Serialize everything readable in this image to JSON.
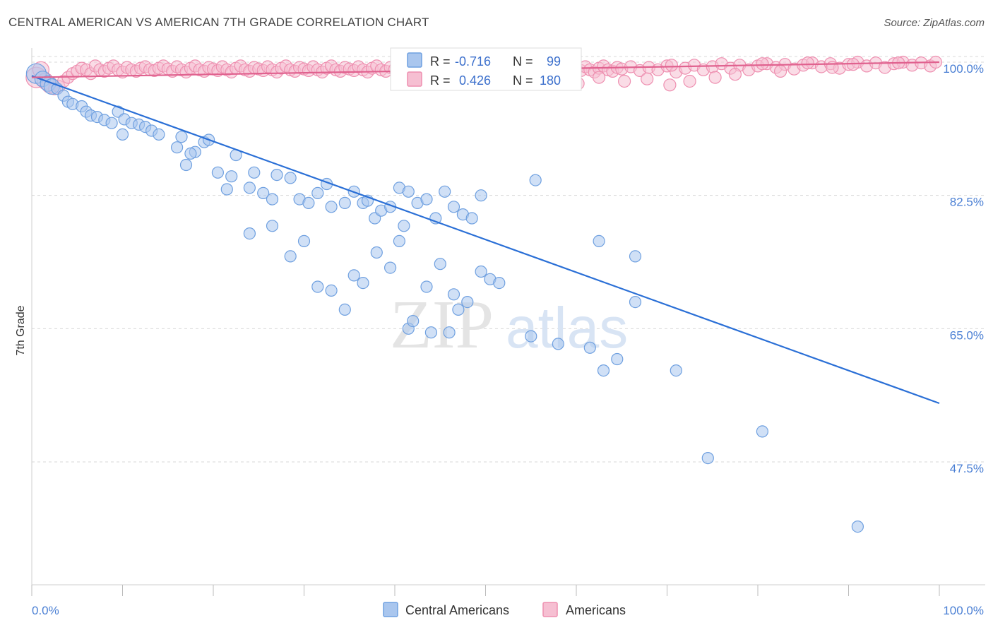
{
  "header": {
    "title": "CENTRAL AMERICAN VS AMERICAN 7TH GRADE CORRELATION CHART",
    "source": "Source: ZipAtlas.com"
  },
  "watermark": {
    "zip": "ZIP",
    "atlas": "atlas"
  },
  "colors": {
    "blue": "#6fa0e0",
    "blue_fill": "#a9c6ee",
    "blue_line": "#2a6fd6",
    "pink": "#ee8fb0",
    "pink_fill": "#f6bfd2",
    "pink_line": "#e0628f",
    "grid": "#d8d8d8",
    "axis_label": "#4a7fd4"
  },
  "legend_box": {
    "rows": [
      {
        "r_label": "R =",
        "r_value": "-0.716",
        "n_label": "N =",
        "n_value": "99"
      },
      {
        "r_label": "R =",
        "r_value": "0.426",
        "n_label": "N =",
        "n_value": "180"
      }
    ]
  },
  "bottom_legend": [
    "Central Americans",
    "Americans"
  ],
  "chart_data": {
    "type": "scatter",
    "title": "CENTRAL AMERICAN VS AMERICAN 7TH GRADE CORRELATION CHART",
    "xlabel": "",
    "ylabel": "7th Grade",
    "xlim": [
      0,
      100
    ],
    "ylim": [
      32,
      103
    ],
    "x_tick_labels": [
      "0.0%",
      "100.0%"
    ],
    "y_ticks": [
      47.5,
      65.0,
      82.5,
      100.0
    ],
    "y_tick_labels": [
      "47.5%",
      "65.0%",
      "82.5%",
      "100.0%"
    ],
    "grid": true,
    "legend_position": "top-center",
    "series": [
      {
        "name": "Central Americans",
        "r": -0.716,
        "n": 99,
        "trend": {
          "x": [
            0,
            100
          ],
          "y": [
            98.2,
            55.2
          ]
        },
        "points": [
          [
            0.5,
            98.5
          ],
          [
            1.2,
            97.8
          ],
          [
            1.8,
            97.2
          ],
          [
            2.2,
            96.8
          ],
          [
            2.8,
            96.5
          ],
          [
            3.5,
            95.6
          ],
          [
            4.0,
            94.8
          ],
          [
            4.5,
            94.5
          ],
          [
            5.5,
            94.2
          ],
          [
            6.0,
            93.5
          ],
          [
            6.5,
            93.0
          ],
          [
            7.2,
            92.8
          ],
          [
            8.0,
            92.4
          ],
          [
            8.8,
            92.0
          ],
          [
            9.5,
            93.5
          ],
          [
            10.2,
            92.5
          ],
          [
            11.0,
            92.0
          ],
          [
            11.8,
            91.8
          ],
          [
            12.5,
            91.5
          ],
          [
            13.2,
            91.0
          ],
          [
            14.0,
            90.5
          ],
          [
            10.0,
            90.5
          ],
          [
            16.5,
            90.2
          ],
          [
            16.0,
            88.8
          ],
          [
            18.0,
            88.2
          ],
          [
            17.0,
            86.5
          ],
          [
            17.5,
            88.0
          ],
          [
            19.0,
            89.5
          ],
          [
            20.5,
            85.5
          ],
          [
            22.0,
            85.0
          ],
          [
            22.5,
            87.8
          ],
          [
            24.0,
            83.5
          ],
          [
            24.5,
            85.5
          ],
          [
            19.5,
            89.8
          ],
          [
            21.5,
            83.3
          ],
          [
            25.5,
            82.8
          ],
          [
            26.5,
            82.0
          ],
          [
            27.0,
            85.2
          ],
          [
            28.5,
            84.8
          ],
          [
            29.5,
            82.0
          ],
          [
            30.5,
            81.5
          ],
          [
            31.5,
            82.8
          ],
          [
            32.5,
            84.0
          ],
          [
            33.0,
            81.0
          ],
          [
            34.5,
            81.5
          ],
          [
            35.5,
            83.0
          ],
          [
            36.5,
            81.5
          ],
          [
            37.0,
            81.8
          ],
          [
            37.8,
            79.5
          ],
          [
            38.5,
            80.5
          ],
          [
            39.5,
            81.0
          ],
          [
            40.5,
            83.5
          ],
          [
            41.5,
            83.0
          ],
          [
            42.5,
            81.5
          ],
          [
            43.5,
            82.0
          ],
          [
            44.5,
            79.5
          ],
          [
            45.5,
            83.0
          ],
          [
            46.5,
            81.0
          ],
          [
            47.5,
            80.0
          ],
          [
            48.5,
            79.5
          ],
          [
            49.5,
            82.5
          ],
          [
            24.0,
            77.5
          ],
          [
            26.5,
            78.5
          ],
          [
            28.5,
            74.5
          ],
          [
            30.0,
            76.5
          ],
          [
            31.5,
            70.5
          ],
          [
            33.0,
            70.0
          ],
          [
            34.5,
            67.5
          ],
          [
            35.5,
            72.0
          ],
          [
            36.5,
            71.0
          ],
          [
            38.0,
            75.0
          ],
          [
            39.5,
            73.0
          ],
          [
            40.5,
            76.5
          ],
          [
            41.0,
            78.5
          ],
          [
            41.5,
            65.0
          ],
          [
            42.0,
            66.0
          ],
          [
            43.5,
            70.5
          ],
          [
            45.0,
            73.5
          ],
          [
            46.5,
            69.5
          ],
          [
            47.0,
            67.5
          ],
          [
            48.0,
            68.5
          ],
          [
            49.5,
            72.5
          ],
          [
            50.5,
            71.5
          ],
          [
            51.5,
            71.0
          ],
          [
            55.0,
            64.0
          ],
          [
            58.0,
            63.0
          ],
          [
            61.5,
            62.5
          ],
          [
            63.0,
            59.5
          ],
          [
            64.5,
            61.0
          ],
          [
            66.5,
            68.5
          ],
          [
            71.0,
            59.5
          ],
          [
            74.5,
            48.0
          ],
          [
            80.5,
            51.5
          ],
          [
            91.0,
            39.0
          ],
          [
            55.5,
            84.5
          ],
          [
            62.5,
            76.5
          ],
          [
            66.5,
            74.5
          ],
          [
            46.0,
            64.5
          ],
          [
            44.0,
            64.5
          ]
        ]
      },
      {
        "name": "Americans",
        "r": 0.426,
        "n": 180,
        "trend": {
          "x": [
            0,
            100
          ],
          "y": [
            98.0,
            100.0
          ]
        },
        "points": [
          [
            0.5,
            98.0
          ],
          [
            1.0,
            99.0
          ],
          [
            1.5,
            97.5
          ],
          [
            2.0,
            97.0
          ],
          [
            2.5,
            96.5
          ],
          [
            3.0,
            96.8
          ],
          [
            3.5,
            97.5
          ],
          [
            4.0,
            98.0
          ],
          [
            4.5,
            98.5
          ],
          [
            5.0,
            98.8
          ],
          [
            5.5,
            99.2
          ],
          [
            6.0,
            99.0
          ],
          [
            6.5,
            98.5
          ],
          [
            7.0,
            99.5
          ],
          [
            7.5,
            99.0
          ],
          [
            8.0,
            98.8
          ],
          [
            8.5,
            99.2
          ],
          [
            9.0,
            99.5
          ],
          [
            9.5,
            99.0
          ],
          [
            10.0,
            98.7
          ],
          [
            10.5,
            99.3
          ],
          [
            11.0,
            99.0
          ],
          [
            11.5,
            98.8
          ],
          [
            12.0,
            99.2
          ],
          [
            12.5,
            99.4
          ],
          [
            13.0,
            99.0
          ],
          [
            13.5,
            98.9
          ],
          [
            14.0,
            99.2
          ],
          [
            14.5,
            99.5
          ],
          [
            15.0,
            99.1
          ],
          [
            15.5,
            98.8
          ],
          [
            16.0,
            99.4
          ],
          [
            16.5,
            99.0
          ],
          [
            17.0,
            98.7
          ],
          [
            17.5,
            99.2
          ],
          [
            18.0,
            99.5
          ],
          [
            18.5,
            99.0
          ],
          [
            19.0,
            98.8
          ],
          [
            19.5,
            99.3
          ],
          [
            20.0,
            99.1
          ],
          [
            20.5,
            98.9
          ],
          [
            21.0,
            99.4
          ],
          [
            21.5,
            99.0
          ],
          [
            22.0,
            98.7
          ],
          [
            22.5,
            99.2
          ],
          [
            23.0,
            99.5
          ],
          [
            23.5,
            99.0
          ],
          [
            24.0,
            98.8
          ],
          [
            24.5,
            99.3
          ],
          [
            25.0,
            99.1
          ],
          [
            25.5,
            98.9
          ],
          [
            26.0,
            99.4
          ],
          [
            26.5,
            99.0
          ],
          [
            27.0,
            98.7
          ],
          [
            27.5,
            99.2
          ],
          [
            28.0,
            99.5
          ],
          [
            28.5,
            99.0
          ],
          [
            29.0,
            98.8
          ],
          [
            29.5,
            99.3
          ],
          [
            30.0,
            99.1
          ],
          [
            30.5,
            98.9
          ],
          [
            31.0,
            99.4
          ],
          [
            31.5,
            99.0
          ],
          [
            32.0,
            98.7
          ],
          [
            32.5,
            99.2
          ],
          [
            33.0,
            99.5
          ],
          [
            33.5,
            99.0
          ],
          [
            34.0,
            98.8
          ],
          [
            34.5,
            99.3
          ],
          [
            35.0,
            99.1
          ],
          [
            35.5,
            98.9
          ],
          [
            36.0,
            99.4
          ],
          [
            36.5,
            99.0
          ],
          [
            37.0,
            98.7
          ],
          [
            37.5,
            99.2
          ],
          [
            38.0,
            99.5
          ],
          [
            38.5,
            99.0
          ],
          [
            39.0,
            98.8
          ],
          [
            39.5,
            99.3
          ],
          [
            40.0,
            99.1
          ],
          [
            40.5,
            98.9
          ],
          [
            41.0,
            99.4
          ],
          [
            41.5,
            99.0
          ],
          [
            42.0,
            98.7
          ],
          [
            42.5,
            99.2
          ],
          [
            43.0,
            99.5
          ],
          [
            43.5,
            99.0
          ],
          [
            44.0,
            98.8
          ],
          [
            44.5,
            99.3
          ],
          [
            45.0,
            99.1
          ],
          [
            45.5,
            98.9
          ],
          [
            46.0,
            99.4
          ],
          [
            46.5,
            99.0
          ],
          [
            47.0,
            98.7
          ],
          [
            47.5,
            99.2
          ],
          [
            48.0,
            99.5
          ],
          [
            48.5,
            99.0
          ],
          [
            49.0,
            98.8
          ],
          [
            49.5,
            99.3
          ],
          [
            50.0,
            99.1
          ],
          [
            50.5,
            98.9
          ],
          [
            51.0,
            99.4
          ],
          [
            51.5,
            99.0
          ],
          [
            52.0,
            98.7
          ],
          [
            52.5,
            99.2
          ],
          [
            53.0,
            99.5
          ],
          [
            53.5,
            99.0
          ],
          [
            54.0,
            98.8
          ],
          [
            54.5,
            99.3
          ],
          [
            55.0,
            99.1
          ],
          [
            55.5,
            98.9
          ],
          [
            56.0,
            99.4
          ],
          [
            56.5,
            99.0
          ],
          [
            57.0,
            98.7
          ],
          [
            57.5,
            99.2
          ],
          [
            58.0,
            99.5
          ],
          [
            58.5,
            99.0
          ],
          [
            59.0,
            98.8
          ],
          [
            59.5,
            99.3
          ],
          [
            60.0,
            99.1
          ],
          [
            60.5,
            98.9
          ],
          [
            61.0,
            99.4
          ],
          [
            61.5,
            99.0
          ],
          [
            62.0,
            98.7
          ],
          [
            62.5,
            99.2
          ],
          [
            63.0,
            99.5
          ],
          [
            63.5,
            99.0
          ],
          [
            64.0,
            98.8
          ],
          [
            64.5,
            99.3
          ],
          [
            65.0,
            99.1
          ],
          [
            66.0,
            99.4
          ],
          [
            67.0,
            98.9
          ],
          [
            68.0,
            99.3
          ],
          [
            69.0,
            99.0
          ],
          [
            70.0,
            99.5
          ],
          [
            71.0,
            98.7
          ],
          [
            72.0,
            99.2
          ],
          [
            73.0,
            99.6
          ],
          [
            74.0,
            99.0
          ],
          [
            75.0,
            99.4
          ],
          [
            76.0,
            99.8
          ],
          [
            77.0,
            99.2
          ],
          [
            78.0,
            99.6
          ],
          [
            79.0,
            99.0
          ],
          [
            80.0,
            99.5
          ],
          [
            81.0,
            99.8
          ],
          [
            82.0,
            99.3
          ],
          [
            83.0,
            99.7
          ],
          [
            84.0,
            99.1
          ],
          [
            85.0,
            99.6
          ],
          [
            86.0,
            99.9
          ],
          [
            87.0,
            99.4
          ],
          [
            88.0,
            99.8
          ],
          [
            89.0,
            99.2
          ],
          [
            90.0,
            99.7
          ],
          [
            91.0,
            100.0
          ],
          [
            92.0,
            99.5
          ],
          [
            93.0,
            99.9
          ],
          [
            94.0,
            99.3
          ],
          [
            95.0,
            99.8
          ],
          [
            96.0,
            100.0
          ],
          [
            97.0,
            99.6
          ],
          [
            98.0,
            99.9
          ],
          [
            99.0,
            99.5
          ],
          [
            99.6,
            100.0
          ],
          [
            80.5,
            99.8
          ],
          [
            85.5,
            99.9
          ],
          [
            90.5,
            99.7
          ],
          [
            95.5,
            99.9
          ],
          [
            70.5,
            99.6
          ],
          [
            60.2,
            97.2
          ],
          [
            62.5,
            98.0
          ],
          [
            65.3,
            97.5
          ],
          [
            67.8,
            97.8
          ],
          [
            70.3,
            97.0
          ],
          [
            72.5,
            97.5
          ],
          [
            75.3,
            98.0
          ],
          [
            77.5,
            98.4
          ],
          [
            82.5,
            98.8
          ],
          [
            88.2,
            99.3
          ]
        ]
      }
    ]
  }
}
